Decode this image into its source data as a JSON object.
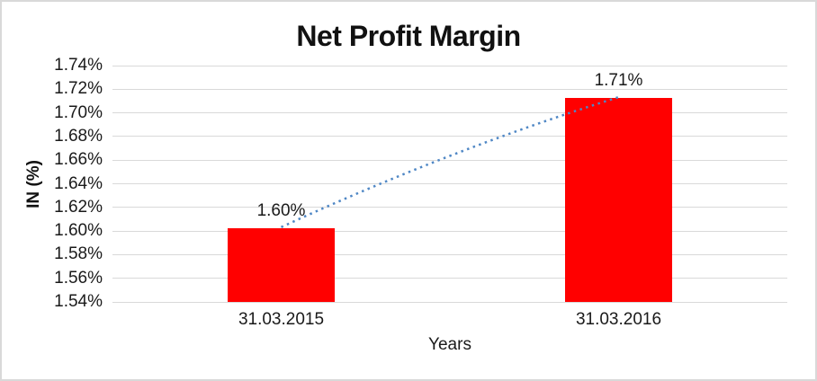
{
  "chart_data": {
    "type": "bar",
    "title": "Net Profit Margin",
    "xlabel": "Years",
    "ylabel": "IN (%)",
    "categories": [
      "31.03.2015",
      "31.03.2016"
    ],
    "values": [
      1.6025,
      1.7125
    ],
    "data_labels": [
      "1.60%",
      "1.71%"
    ],
    "ylim": [
      1.54,
      1.74
    ],
    "y_tick_step": 0.02,
    "y_tick_labels": [
      "1.54%",
      "1.56%",
      "1.58%",
      "1.60%",
      "1.62%",
      "1.64%",
      "1.66%",
      "1.68%",
      "1.70%",
      "1.72%",
      "1.74%"
    ],
    "bar_color": "#ff0000",
    "gridline_color": "#d9d9d9",
    "trendline": {
      "color": "#4f87c5",
      "style": "dotted"
    },
    "grid": true,
    "legend": false
  }
}
